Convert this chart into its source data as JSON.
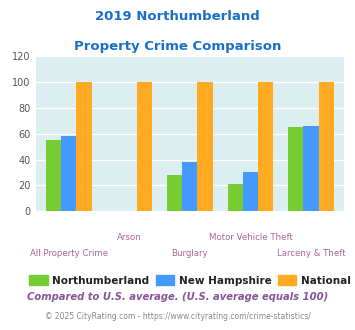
{
  "title_line1": "2019 Northumberland",
  "title_line2": "Property Crime Comparison",
  "categories": [
    "All Property Crime",
    "Arson",
    "Burglary",
    "Motor Vehicle Theft",
    "Larceny & Theft"
  ],
  "northumberland": [
    55,
    0,
    28,
    21,
    65
  ],
  "new_hampshire": [
    58,
    0,
    38,
    30,
    66
  ],
  "national": [
    100,
    100,
    100,
    100,
    100
  ],
  "colors": {
    "northumberland": "#77cc33",
    "new_hampshire": "#4499ff",
    "national": "#ffaa22"
  },
  "ylim": [
    0,
    120
  ],
  "yticks": [
    0,
    20,
    40,
    60,
    80,
    100,
    120
  ],
  "legend_labels": [
    "Northumberland",
    "New Hampshire",
    "National"
  ],
  "footnote1": "Compared to U.S. average. (U.S. average equals 100)",
  "footnote2": "© 2025 CityRating.com - https://www.cityrating.com/crime-statistics/",
  "background_color": "#ddeef0",
  "title_color": "#1a6fcc",
  "xlabel_color": "#aa6699",
  "footnote1_color": "#885599",
  "footnote2_color": "#888888",
  "footnote2_url_color": "#3388cc"
}
